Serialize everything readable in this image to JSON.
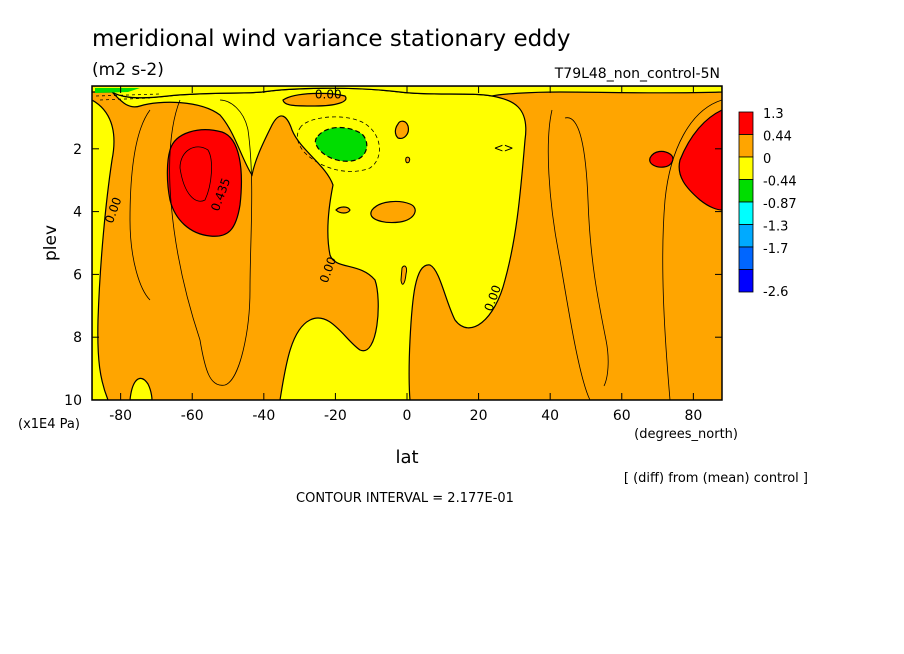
{
  "title": "meridional wind variance  stationary eddy",
  "units": "(m2 s-2)",
  "run_label": "T79L48_non_control-5N",
  "y_unit_note": "(x1E4 Pa)",
  "x_unit_note": "(degrees_north)",
  "diff_note": "[ (diff) from (mean) control ]",
  "contour_interval": "CONTOUR INTERVAL = 2.177E-01",
  "chart_data": {
    "type": "heatmap",
    "subtype": "filled contour",
    "xlabel": "lat",
    "ylabel": "plev",
    "xlim": [
      -88,
      88
    ],
    "ylim": [
      10,
      0
    ],
    "x_ticks": [
      "-80",
      "-60",
      "-40",
      "-20",
      "0",
      "20",
      "40",
      "60",
      "80"
    ],
    "x_tick_values": [
      -80,
      -60,
      -40,
      -20,
      0,
      20,
      40,
      60,
      80
    ],
    "y_ticks": [
      "2",
      "4",
      "6",
      "8",
      "10"
    ],
    "y_tick_values": [
      2,
      4,
      6,
      8,
      10
    ],
    "legend": {
      "labels": [
        "1.3",
        "0.44",
        "0",
        "-0.44",
        "-0.87",
        "-1.3",
        "-1.7",
        "-2.6"
      ],
      "colors": [
        "#ff0000",
        "#ffa500",
        "#ffff00",
        "#00dd00",
        "#00ffff",
        "#00aaff",
        "#0066ff",
        "#0000ff"
      ]
    },
    "colors": {
      "positive_high": "#ff0000",
      "positive": "#ffa500",
      "near_zero": "#ffff00",
      "negative": "#00dd00"
    },
    "contour_labels": [
      {
        "text": "0.00",
        "lat": -22,
        "plev": 0.4
      },
      {
        "text": "0.00",
        "lat": -81,
        "plev": 4.0
      },
      {
        "text": "0.435",
        "lat": -51,
        "plev": 3.5
      },
      {
        "text": "0.00",
        "lat": -21,
        "plev": 5.9
      },
      {
        "text": "0.00",
        "lat": 25,
        "plev": 6.8
      },
      {
        "text": "<>",
        "lat": 27,
        "plev": 2.1
      }
    ]
  }
}
